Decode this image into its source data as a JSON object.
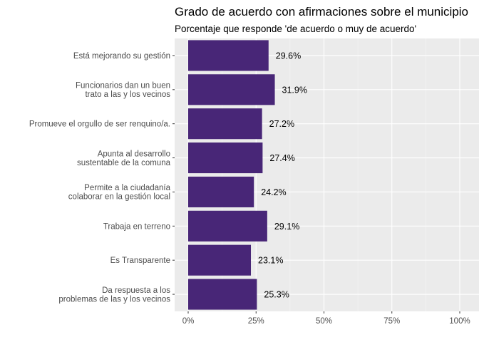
{
  "chart_data": {
    "type": "bar",
    "orientation": "horizontal",
    "title": "Grado de acuerdo con afirmaciones sobre el municipio",
    "subtitle": "Porcentaje que responde 'de acuerdo o muy de acuerdo'",
    "xlabel": "",
    "ylabel": "",
    "categories": [
      [
        "Está mejorando  su  gestión"
      ],
      [
        "Funcionarios dan un buen",
        "trato a las y los vecinos"
      ],
      [
        "Promueve el orgullo de ser renquino/a."
      ],
      [
        "Apunta al desarrollo",
        "sustentable de la comuna"
      ],
      [
        "Permite a la ciudadanía",
        "colaborar en la gestión local"
      ],
      [
        "Trabaja en terreno"
      ],
      [
        "Es Transparente"
      ],
      [
        "Da respuesta a los",
        "problemas de  las  y los vecinos"
      ]
    ],
    "values": [
      29.6,
      31.9,
      27.2,
      27.4,
      24.2,
      29.1,
      23.1,
      25.3
    ],
    "value_labels": [
      "29.6%",
      "31.9%",
      "27.2%",
      "27.4%",
      "24.2%",
      "29.1%",
      "23.1%",
      "25.3%"
    ],
    "xlim": [
      0,
      100
    ],
    "x_ticks": [
      0,
      25,
      50,
      75,
      100
    ],
    "x_tick_labels": [
      "0%",
      "25%",
      "50%",
      "75%",
      "100%"
    ],
    "grid": true,
    "legend": "none",
    "colors": {
      "bar": "#482677",
      "panel": "#ebebeb",
      "grid_major": "#ffffff",
      "grid_minor": "#f5f5f5"
    }
  }
}
